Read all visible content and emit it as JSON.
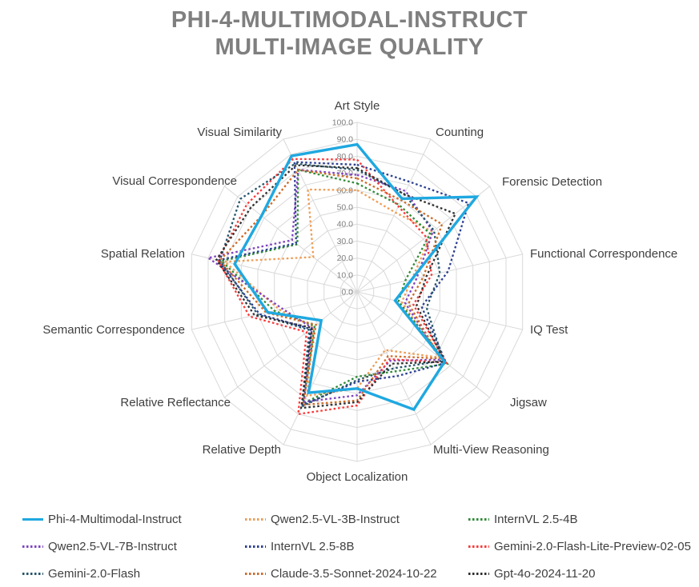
{
  "title": {
    "line1": "PHI-4-MULTIMODAL-INSTRUCT",
    "line2": "MULTI-IMAGE QUALITY"
  },
  "chart_data": {
    "type": "radar",
    "title": "PHI-4-MULTIMODAL-INSTRUCT MULTI-IMAGE QUALITY",
    "grid": "polygon-rings-with-spokes",
    "grid_color": "#d9d9d9",
    "legend_position": "bottom",
    "r_axis": {
      "min": 0,
      "max": 100,
      "step": 10,
      "tick_labels": [
        "0.0",
        "10.0",
        "20.0",
        "30.0",
        "40.0",
        "50.0",
        "60.0",
        "70.0",
        "80.0",
        "90.0",
        "100.0"
      ]
    },
    "categories": [
      "Art Style",
      "Counting",
      "Forensic Detection",
      "Functional Correspondence",
      "IQ Test",
      "Jigsaw",
      "Multi-View Reasoning",
      "Object Localization",
      "Relative Depth",
      "Relative Reflectance",
      "Semantic Correspondence",
      "Spatial Relation",
      "Visual Correspondence",
      "Visual Similarity"
    ],
    "series": [
      {
        "name": "Phi-4-Multimodal-Instruct",
        "color": "#1fa8e0",
        "line_style": "solid",
        "values": [
          87,
          61,
          90,
          33,
          23,
          66,
          77,
          57,
          66,
          27,
          54,
          74,
          72,
          89
        ]
      },
      {
        "name": "Qwen2.5-VL-3B-Instruct",
        "color": "#ee9d55",
        "line_style": "dotted",
        "values": [
          60,
          52,
          57,
          33,
          27,
          62,
          38,
          57,
          68,
          33,
          47,
          80,
          33,
          67
        ]
      },
      {
        "name": "InternVL 2.5-4B",
        "color": "#2f8b37",
        "line_style": "dotted",
        "values": [
          64,
          57,
          55,
          29,
          25,
          68,
          52,
          50,
          73,
          32,
          50,
          82,
          45,
          80
        ]
      },
      {
        "name": "Qwen2.5-VL-7B-Instruct",
        "color": "#8044c0",
        "line_style": "dotted",
        "values": [
          69,
          66,
          57,
          36,
          29,
          64,
          45,
          61,
          72,
          34,
          45,
          90,
          49,
          80
        ]
      },
      {
        "name": "InternVL 2.5-8B",
        "color": "#2b3f92",
        "line_style": "dotted",
        "values": [
          75,
          72,
          84,
          55,
          39,
          67,
          55,
          53,
          74,
          35,
          59,
          84,
          46,
          85
        ]
      },
      {
        "name": "Gemini-2.0-Flash-Lite-Preview-02-05",
        "color": "#fb3a3a",
        "line_style": "dotted",
        "values": [
          78,
          56,
          52,
          45,
          34,
          67,
          44,
          67,
          80,
          38,
          65,
          84,
          83,
          87
        ]
      },
      {
        "name": "Gemini-2.0-Flash",
        "color": "#26566b",
        "line_style": "dotted",
        "values": [
          72,
          64,
          58,
          50,
          42,
          65,
          50,
          52,
          75,
          36,
          60,
          83,
          88,
          84
        ]
      },
      {
        "name": "Claude-3.5-Sonnet-2024-10-22",
        "color": "#ce6b28",
        "line_style": "dotted",
        "values": [
          67,
          60,
          64,
          40,
          31,
          63,
          42,
          64,
          74,
          31,
          55,
          83,
          72,
          80
        ]
      },
      {
        "name": "Gpt-4o-2024-11-20",
        "color": "#303030",
        "line_style": "dotted",
        "values": [
          73,
          64,
          74,
          42,
          36,
          66,
          47,
          65,
          76,
          34,
          62,
          85,
          80,
          83
        ]
      }
    ]
  }
}
